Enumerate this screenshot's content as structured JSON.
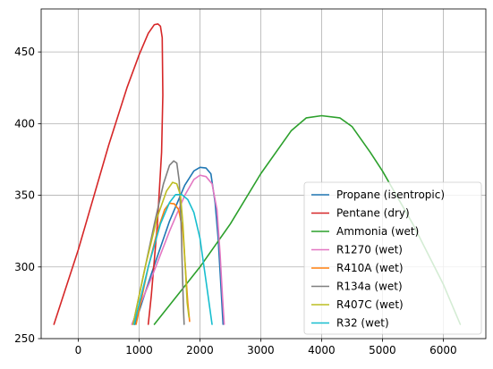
{
  "chart_data": {
    "type": "line",
    "title": "",
    "xlabel": "",
    "ylabel": "",
    "xlim": [
      -610,
      6700
    ],
    "ylim": [
      250,
      480
    ],
    "xticks": [
      0,
      1000,
      2000,
      3000,
      4000,
      5000,
      6000
    ],
    "yticks": [
      250,
      300,
      350,
      400,
      450
    ],
    "grid": true,
    "legend_position": "lower right",
    "series": [
      {
        "name": "Propane (isentropic)",
        "color": "#1f77b4",
        "points": [
          [
            930,
            260
          ],
          [
            1200,
            295
          ],
          [
            1500,
            332
          ],
          [
            1750,
            357
          ],
          [
            1900,
            367
          ],
          [
            2000,
            369.5
          ],
          [
            2100,
            369
          ],
          [
            2180,
            365
          ],
          [
            2250,
            345
          ],
          [
            2300,
            320
          ],
          [
            2340,
            290
          ],
          [
            2380,
            260
          ]
        ]
      },
      {
        "name": "Pentane (dry)",
        "color": "#d62728",
        "points": [
          [
            -400,
            260
          ],
          [
            0,
            312
          ],
          [
            500,
            385
          ],
          [
            800,
            425
          ],
          [
            1000,
            448
          ],
          [
            1150,
            463
          ],
          [
            1250,
            469
          ],
          [
            1310,
            469.5
          ],
          [
            1350,
            468
          ],
          [
            1380,
            460
          ],
          [
            1390,
            420
          ],
          [
            1370,
            380
          ],
          [
            1300,
            330
          ],
          [
            1200,
            280
          ],
          [
            1150,
            260
          ]
        ]
      },
      {
        "name": "Ammonia (wet)",
        "color": "#2ca02c",
        "points": [
          [
            1250,
            260
          ],
          [
            2000,
            300
          ],
          [
            2500,
            330
          ],
          [
            3000,
            365
          ],
          [
            3500,
            395
          ],
          [
            3750,
            404
          ],
          [
            4000,
            405.5
          ],
          [
            4300,
            404
          ],
          [
            4500,
            398
          ],
          [
            4800,
            380
          ],
          [
            5000,
            367
          ],
          [
            5500,
            330
          ],
          [
            6000,
            288
          ],
          [
            6280,
            260
          ]
        ]
      },
      {
        "name": "R1270 (wet)",
        "color": "#e377c2",
        "points": [
          [
            880,
            260
          ],
          [
            1200,
            292
          ],
          [
            1500,
            325
          ],
          [
            1750,
            350
          ],
          [
            1900,
            361
          ],
          [
            2000,
            364
          ],
          [
            2100,
            363
          ],
          [
            2200,
            358
          ],
          [
            2280,
            340
          ],
          [
            2330,
            310
          ],
          [
            2370,
            280
          ],
          [
            2400,
            260
          ]
        ]
      },
      {
        "name": "R410A (wet)",
        "color": "#ff7f0e",
        "points": [
          [
            950,
            260
          ],
          [
            1150,
            300
          ],
          [
            1300,
            325
          ],
          [
            1420,
            340
          ],
          [
            1500,
            344.5
          ],
          [
            1580,
            344
          ],
          [
            1650,
            340
          ],
          [
            1720,
            325
          ],
          [
            1760,
            300
          ],
          [
            1800,
            275
          ],
          [
            1830,
            262
          ]
        ]
      },
      {
        "name": "R134a (wet)",
        "color": "#7f7f7f",
        "points": [
          [
            900,
            260
          ],
          [
            1100,
            300
          ],
          [
            1250,
            330
          ],
          [
            1400,
            358
          ],
          [
            1500,
            371
          ],
          [
            1570,
            374
          ],
          [
            1620,
            372.5
          ],
          [
            1660,
            360
          ],
          [
            1690,
            330
          ],
          [
            1710,
            300
          ],
          [
            1730,
            270
          ],
          [
            1740,
            260
          ]
        ]
      },
      {
        "name": "R407C (wet)",
        "color": "#bcbd22",
        "points": [
          [
            900,
            260
          ],
          [
            1100,
            300
          ],
          [
            1300,
            335
          ],
          [
            1450,
            353
          ],
          [
            1550,
            359
          ],
          [
            1620,
            358
          ],
          [
            1680,
            350
          ],
          [
            1720,
            330
          ],
          [
            1760,
            300
          ],
          [
            1790,
            275
          ],
          [
            1820,
            265
          ]
        ]
      },
      {
        "name": "R32 (wet)",
        "color": "#17becf",
        "points": [
          [
            920,
            260
          ],
          [
            1150,
            300
          ],
          [
            1350,
            330
          ],
          [
            1500,
            345
          ],
          [
            1600,
            350.5
          ],
          [
            1700,
            350.5
          ],
          [
            1800,
            347
          ],
          [
            1900,
            338
          ],
          [
            2000,
            320
          ],
          [
            2100,
            290
          ],
          [
            2200,
            260
          ]
        ]
      }
    ]
  }
}
